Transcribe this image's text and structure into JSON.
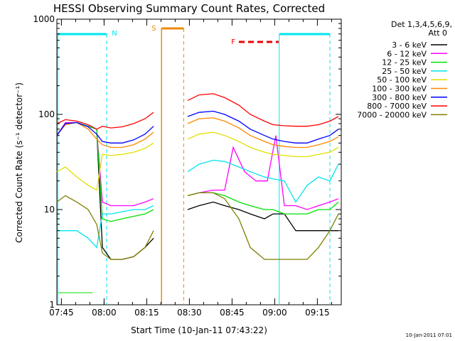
{
  "chart_data": {
    "type": "line",
    "title": "HESSI Observing Summary Count Rates, Corrected",
    "xlabel": "Start Time (10-Jan-11 07:43:22)",
    "ylabel": "Corrected Count Rate (s⁻¹ detector⁻¹)",
    "yscale": "log",
    "ylim": [
      1,
      1000
    ],
    "xlim_minutes": [
      0,
      100
    ],
    "x_unit": "minutes after 07:43:22",
    "xticks": [
      {
        "label": "07:45",
        "value": 1.6
      },
      {
        "label": "08:00",
        "value": 16.6
      },
      {
        "label": "08:15",
        "value": 31.6
      },
      {
        "label": "08:30",
        "value": 46.6
      },
      {
        "label": "08:45",
        "value": 61.6
      },
      {
        "label": "09:00",
        "value": 76.6
      },
      {
        "label": "09:15",
        "value": 91.6
      }
    ],
    "yticks": [
      {
        "label": "1",
        "value": 1
      },
      {
        "label": "10",
        "value": 10
      },
      {
        "label": "100",
        "value": 100
      },
      {
        "label": "1000",
        "value": 1000
      }
    ],
    "legend_header": [
      "Det 1,3,4,5,6,9,",
      "Att 0"
    ],
    "legend_position": "right",
    "timestamp": "10-Jan-2011 07:01",
    "flags": [
      {
        "label": "N",
        "color": "#00e5ee"
      },
      {
        "label": "S",
        "color": "#ee8800"
      },
      {
        "label": "F",
        "color": "#ee0000"
      }
    ],
    "series": [
      {
        "name": "3 - 6 keV",
        "color": "#000000",
        "x": [
          0,
          3,
          7,
          11,
          14,
          16,
          19,
          23,
          27,
          31,
          34,
          46,
          50,
          55,
          59,
          64,
          68,
          73,
          76,
          80,
          84,
          88,
          92,
          96,
          99
        ],
        "y": [
          60,
          80,
          82,
          75,
          70,
          4,
          3,
          3,
          3.2,
          4,
          5,
          10,
          11,
          12,
          11,
          10,
          9,
          8,
          9,
          9,
          6,
          6,
          6,
          6,
          6
        ]
      },
      {
        "name": "6 - 12 keV",
        "color": "#ff00ff",
        "x": [
          0,
          3,
          7,
          11,
          14,
          16,
          19,
          23,
          27,
          31,
          34,
          46,
          50,
          55,
          59,
          62,
          66,
          70,
          74,
          77,
          80,
          84,
          88,
          92,
          96,
          99
        ],
        "y": [
          60,
          82,
          82,
          75,
          70,
          12,
          11,
          11,
          11,
          12,
          13,
          14,
          15,
          16,
          16,
          45,
          25,
          20,
          20,
          60,
          11,
          11,
          10,
          11,
          12,
          13
        ]
      },
      {
        "name": "12 - 25 keV",
        "color": "#00e000",
        "x": [
          0,
          3,
          7,
          11,
          14,
          16,
          19,
          23,
          27,
          31,
          34,
          46,
          50,
          55,
          59,
          64,
          68,
          73,
          76,
          80,
          84,
          88,
          92,
          96,
          99
        ],
        "y": [
          60,
          80,
          82,
          75,
          70,
          8,
          7.5,
          8,
          8.5,
          9,
          10,
          14,
          15,
          15,
          14,
          12,
          11,
          10,
          10,
          9,
          9,
          9,
          10,
          10,
          12
        ]
      },
      {
        "name": "25 - 50 keV",
        "color": "#00e5ee",
        "x": [
          0,
          3,
          7,
          11,
          14,
          16,
          19,
          23,
          27,
          31,
          34,
          46,
          50,
          55,
          59,
          64,
          68,
          73,
          76,
          80,
          84,
          88,
          92,
          96,
          99
        ],
        "y": [
          6,
          6,
          6,
          5,
          4,
          9,
          9,
          9.5,
          10,
          10,
          11,
          25,
          30,
          33,
          32,
          28,
          25,
          22,
          21,
          20,
          12,
          18,
          22,
          20,
          30
        ]
      },
      {
        "name": "50 - 100 keV",
        "color": "#e0e000",
        "x": [
          0,
          3,
          7,
          11,
          14,
          16,
          19,
          23,
          27,
          31,
          34,
          46,
          50,
          55,
          59,
          64,
          68,
          73,
          76,
          80,
          84,
          88,
          92,
          96,
          99
        ],
        "y": [
          25,
          28,
          22,
          18,
          16,
          38,
          37,
          38,
          40,
          44,
          50,
          55,
          62,
          65,
          60,
          52,
          45,
          40,
          38,
          37,
          36,
          36,
          38,
          40,
          45
        ]
      },
      {
        "name": "100 - 300 keV",
        "color": "#ff8800",
        "x": [
          0,
          3,
          7,
          11,
          14,
          16,
          19,
          23,
          27,
          31,
          34,
          46,
          50,
          55,
          59,
          64,
          68,
          73,
          76,
          80,
          84,
          88,
          92,
          96,
          99
        ],
        "y": [
          60,
          78,
          82,
          70,
          55,
          48,
          45,
          45,
          48,
          55,
          65,
          80,
          90,
          92,
          85,
          72,
          60,
          52,
          48,
          46,
          45,
          45,
          48,
          52,
          58
        ]
      },
      {
        "name": "300 - 800 keV",
        "color": "#0000ff",
        "x": [
          0,
          3,
          7,
          11,
          14,
          16,
          19,
          23,
          27,
          31,
          34,
          46,
          50,
          55,
          59,
          64,
          68,
          73,
          76,
          80,
          84,
          88,
          92,
          96,
          99
        ],
        "y": [
          60,
          80,
          82,
          74,
          62,
          52,
          50,
          50,
          54,
          62,
          75,
          95,
          105,
          108,
          100,
          85,
          70,
          60,
          55,
          52,
          50,
          50,
          55,
          60,
          70
        ]
      },
      {
        "name": "800 - 7000 keV",
        "color": "#ff0000",
        "x": [
          0,
          3,
          7,
          11,
          14,
          16,
          19,
          23,
          27,
          31,
          34,
          46,
          50,
          55,
          59,
          64,
          68,
          73,
          76,
          80,
          84,
          88,
          92,
          96,
          99
        ],
        "y": [
          80,
          88,
          85,
          78,
          70,
          75,
          72,
          74,
          80,
          90,
          105,
          140,
          160,
          165,
          150,
          125,
          100,
          85,
          78,
          76,
          75,
          75,
          78,
          85,
          95
        ]
      },
      {
        "name": "7000 - 20000 keV",
        "color": "#808000",
        "x": [
          0,
          3,
          7,
          11,
          14,
          16,
          19,
          23,
          27,
          31,
          34,
          46,
          50,
          55,
          59,
          64,
          68,
          73,
          76,
          80,
          84,
          88,
          92,
          96,
          99
        ],
        "y": [
          12,
          14,
          12,
          10,
          7,
          3.5,
          3,
          3,
          3.2,
          4,
          6,
          14,
          15,
          15,
          13,
          8,
          4,
          3,
          3,
          3,
          3,
          3,
          4,
          6,
          9
        ]
      }
    ]
  }
}
